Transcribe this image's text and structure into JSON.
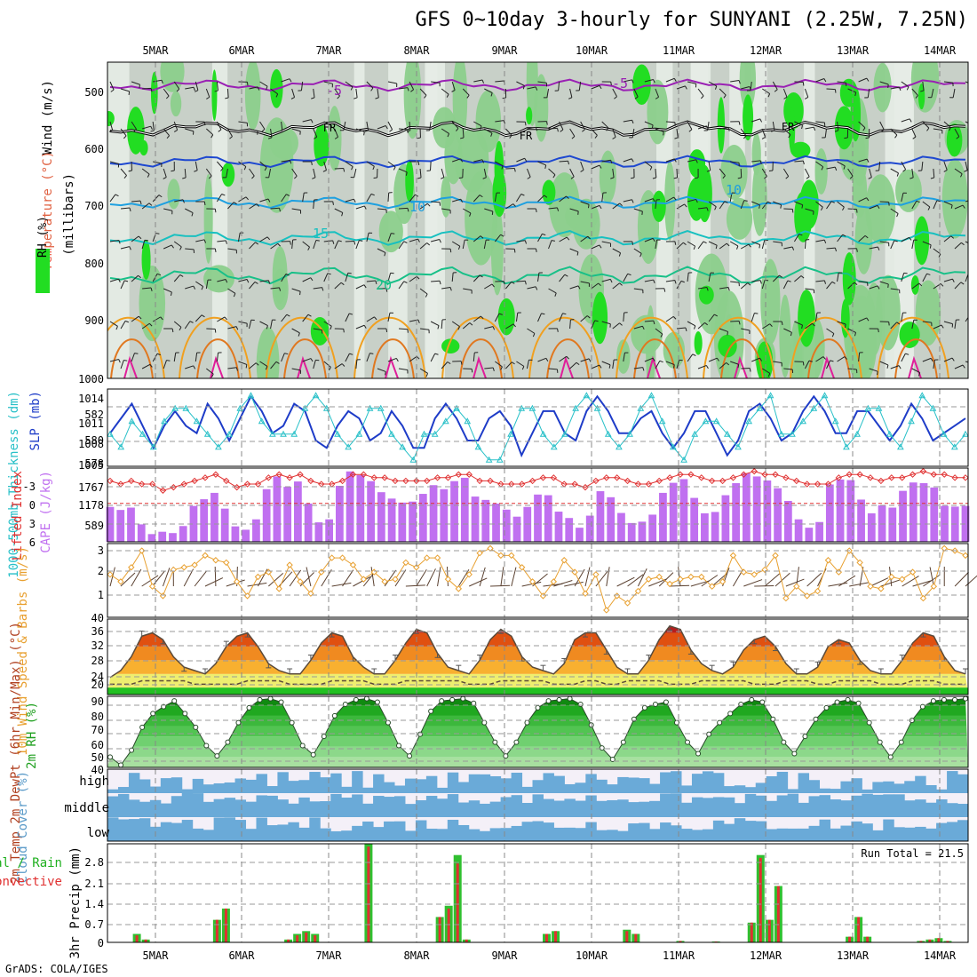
{
  "title": "GFS 0~10day 3-hourly for SUNYANI (2.25W, 7.25N)",
  "credit": "GrADS: COLA/IGES",
  "dates": [
    "5MAR",
    "6MAR",
    "7MAR",
    "8MAR",
    "9MAR",
    "10MAR",
    "11MAR",
    "12MAR",
    "13MAR",
    "14MAR"
  ],
  "colors": {
    "rh_green": "#22dd22",
    "rh_light": "#8ccf8c",
    "rh_grey": "#c8d0c8",
    "temp_purple": "#9a20b4",
    "temp_blue": "#1e48d0",
    "temp_lightblue": "#1ea0e0",
    "temp_teal": "#18c0c0",
    "temp_green": "#18c088",
    "temp_orange": "#f0a020",
    "temp_darkorange": "#e07820",
    "temp_magenta": "#e01e9a",
    "slp_line": "#1e3cc8",
    "thickness_line": "#28c0c8",
    "cape_bar": "#c070f0",
    "li_line": "#e03030",
    "wind_line": "#e8a030",
    "cloud_blue": "#6aaad8",
    "cloud_bg": "#f4f0f8",
    "precip_green": "#30c030",
    "precip_red": "#e03030"
  },
  "chart_data": [
    {
      "panel": "cross-section",
      "type": "heatmap",
      "ylabel_parts": [
        "Wind (m/s)",
        "Temperature (°C)",
        "RH (%)",
        "(millibars)"
      ],
      "yticks": [
        500,
        600,
        700,
        800,
        900,
        1000
      ],
      "contour_labels": [
        "-5",
        "-5",
        "FR",
        "FR",
        "FR",
        "10",
        "10",
        "15",
        "20"
      ]
    },
    {
      "panel": "slp-thickness",
      "type": "line",
      "ylabel_left": "1000-500mb Thickness (dm)",
      "ylabel_right": "SLP (mb)",
      "yticks_left": [
        "582",
        "580",
        "578"
      ],
      "yticks_right": [
        "1014",
        "1011",
        "1008",
        "1005"
      ],
      "series": [
        {
          "name": "SLP",
          "values": [
            1009,
            1011,
            1013,
            1010,
            1007,
            1010,
            1012,
            1010,
            1009,
            1013,
            1011,
            1008,
            1011,
            1014,
            1012,
            1009,
            1010,
            1013,
            1012,
            1008,
            1007,
            1010,
            1012,
            1011,
            1008,
            1009,
            1012,
            1010,
            1007,
            1007,
            1011,
            1013,
            1011,
            1008,
            1008,
            1011,
            1012,
            1010,
            1006,
            1009,
            1012,
            1012,
            1009,
            1008,
            1012,
            1014,
            1012,
            1009,
            1009,
            1011,
            1012,
            1009,
            1007,
            1009,
            1012,
            1012,
            1009,
            1006,
            1008,
            1012,
            1013,
            1011,
            1008,
            1009,
            1012,
            1014,
            1012,
            1009,
            1009,
            1012,
            1012,
            1010,
            1008,
            1010,
            1013,
            1011,
            1008,
            1009,
            1010,
            1011
          ]
        },
        {
          "name": "Thickness",
          "values": [
            580,
            579,
            581,
            580,
            579,
            581,
            582,
            582,
            581,
            580,
            579,
            580,
            582,
            583,
            581,
            580,
            580,
            580,
            582,
            583,
            582,
            580,
            579,
            580,
            582,
            582,
            580,
            579,
            578,
            580,
            580,
            581,
            582,
            581,
            579,
            578,
            578,
            580,
            582,
            582,
            580,
            579,
            580,
            582,
            583,
            582,
            580,
            579,
            580,
            582,
            583,
            581,
            579,
            578,
            580,
            581,
            581,
            580,
            579,
            581,
            582,
            583,
            580,
            580,
            581,
            582,
            583,
            581,
            579,
            580,
            582,
            582,
            580,
            579,
            581,
            583,
            582,
            580,
            579,
            580
          ]
        }
      ]
    },
    {
      "panel": "cape-li",
      "type": "bar",
      "ylabel_left": "Lifted Index",
      "ylabel_right": "CAPE (J/kg)",
      "yticks_left": [
        "-3",
        "0",
        "3",
        "6"
      ],
      "yticks_right": [
        "1767",
        "1178",
        "589"
      ],
      "series": [
        {
          "name": "CAPE",
          "values": [
            1040,
            950,
            1020,
            520,
            230,
            300,
            260,
            470,
            1070,
            1270,
            1460,
            990,
            460,
            360,
            670,
            1570,
            1950,
            1640,
            1800,
            1140,
            580,
            670,
            1670,
            2100,
            1990,
            1810,
            1480,
            1290,
            1170,
            1200,
            1430,
            1690,
            1570,
            1810,
            1910,
            1350,
            1250,
            1140,
            960,
            750,
            1040,
            1410,
            1390,
            900,
            710,
            420,
            780,
            1510,
            1330,
            860,
            560,
            600,
            810,
            1460,
            1760,
            1870,
            1310,
            850,
            890,
            1390,
            1750,
            2050,
            1950,
            1830,
            1600,
            1220,
            670,
            420,
            590,
            1710,
            1860,
            1840,
            1260,
            850,
            1090,
            1020,
            1520,
            1770,
            1750,
            1620,
            1070,
            1050,
            1070
          ]
        },
        {
          "name": "Lifted Index",
          "values": [
            -3.5,
            -3,
            -3.5,
            -3,
            -3,
            -2,
            -2.5,
            -3,
            -3.5,
            -4,
            -4.5,
            -3.5,
            -2.5,
            -3,
            -3,
            -4,
            -4.5,
            -4,
            -4.5,
            -3.5,
            -3,
            -3,
            -3.5,
            -4.5,
            -4.5,
            -4,
            -4,
            -3.5,
            -3.5,
            -3.5,
            -3.5,
            -4,
            -4,
            -4.5,
            -4.5,
            -3.5,
            -3.5,
            -3,
            -3,
            -3,
            -3.5,
            -4,
            -4,
            -3,
            -3,
            -2.5,
            -3.5,
            -4,
            -4,
            -3.5,
            -3,
            -3,
            -3.5,
            -4,
            -4.5,
            -4.5,
            -4,
            -3.5,
            -3.5,
            -4,
            -4.5,
            -5,
            -4.5,
            -4.5,
            -4,
            -3.5,
            -3,
            -3,
            -3,
            -4,
            -4.5,
            -4.5,
            -4,
            -3.5,
            -4,
            -4,
            -4.5,
            -5,
            -4.5,
            -4.5,
            -4,
            -4
          ]
        }
      ]
    },
    {
      "panel": "wind10m",
      "type": "line",
      "ylabel": "10m Wind Speed & Barbs (m/s)",
      "yticks": [
        "3",
        "2",
        "1"
      ],
      "ylim": [
        0,
        3
      ],
      "series": [
        {
          "name": "Speed",
          "values": [
            1.8,
            1.5,
            2.1,
            2.8,
            1.3,
            0.9,
            2.0,
            2.1,
            2.2,
            2.6,
            2.4,
            2.3,
            1.5,
            0.9,
            1.7,
            1.9,
            1.2,
            2.2,
            1.5,
            1.0,
            1.9,
            2.5,
            2.5,
            2.2,
            1.6,
            1.9,
            1.5,
            1.6,
            2.3,
            2.1,
            2.5,
            2.5,
            1.6,
            1.2,
            1.8,
            2.7,
            2.9,
            2.6,
            2.6,
            2.1,
            1.5,
            0.9,
            1.5,
            2.4,
            1.9,
            1.0,
            1.8,
            0.3,
            0.9,
            0.6,
            1.1,
            1.6,
            1.7,
            1.4,
            1.6,
            1.7,
            1.7,
            1.3,
            1.5,
            2.6,
            1.9,
            1.8,
            2.0,
            2.6,
            0.8,
            1.3,
            0.9,
            1.1,
            2.4,
            1.9,
            2.8,
            2.3,
            1.3,
            1.2,
            1.7,
            1.6,
            1.9,
            0.8,
            1.3,
            2.9,
            2.8,
            2.6
          ]
        }
      ]
    },
    {
      "panel": "temp2m",
      "type": "area",
      "ylabel": "2m Temp 2m DewPt (6hr Min/Max) (°C)",
      "yticks": [
        "40",
        "36",
        "32",
        "28",
        "24",
        "20"
      ],
      "ylim": [
        18,
        40
      ],
      "series": [
        {
          "name": "2m Temp",
          "values": [
            23,
            25,
            29,
            35,
            36,
            34,
            29,
            26,
            25,
            24,
            27,
            32,
            35,
            36,
            32,
            27,
            25,
            24,
            24,
            28,
            33,
            36,
            35,
            29,
            26,
            24,
            24,
            28,
            33,
            37,
            36,
            30,
            26,
            25,
            24,
            28,
            34,
            37,
            35,
            29,
            26,
            25,
            24,
            27,
            34,
            36,
            36,
            31,
            26,
            24,
            24,
            28,
            34,
            38,
            37,
            31,
            27,
            25,
            24,
            26,
            31,
            34,
            35,
            32,
            27,
            24,
            24,
            26,
            32,
            34,
            33,
            28,
            25,
            24,
            24,
            28,
            33,
            36,
            35,
            29,
            25,
            24
          ]
        },
        {
          "name": "2m DewPt",
          "values": [
            21,
            21,
            21,
            22,
            22,
            22,
            22,
            22,
            21,
            21,
            21,
            21,
            21,
            22,
            22,
            22,
            22,
            21,
            21,
            21,
            21,
            22,
            22,
            22,
            22,
            21,
            21,
            21,
            22,
            22,
            22,
            22,
            22,
            22,
            21,
            21,
            21,
            22,
            22,
            22,
            22,
            22,
            21,
            21,
            21,
            22,
            22,
            21,
            21,
            22,
            22,
            22,
            22,
            21,
            21,
            21,
            22,
            22,
            22,
            22,
            22,
            21,
            21,
            21,
            22,
            22,
            22,
            21,
            21,
            22,
            22,
            22,
            22,
            21,
            21,
            21,
            22,
            22,
            22,
            21,
            21,
            21
          ]
        }
      ]
    },
    {
      "panel": "rh2m",
      "type": "area",
      "ylabel": "2m RH (%)",
      "yticks": [
        "90",
        "80",
        "70",
        "60",
        "50",
        "40"
      ],
      "ylim": [
        33,
        95
      ],
      "series": [
        {
          "name": "2m RH",
          "values": [
            42,
            35,
            48,
            68,
            80,
            86,
            91,
            80,
            68,
            52,
            43,
            55,
            72,
            85,
            92,
            93,
            90,
            72,
            52,
            44,
            60,
            78,
            88,
            92,
            93,
            90,
            72,
            52,
            43,
            62,
            82,
            91,
            92,
            93,
            89,
            72,
            55,
            43,
            55,
            72,
            85,
            91,
            92,
            93,
            88,
            70,
            50,
            40,
            55,
            75,
            85,
            88,
            90,
            72,
            55,
            45,
            62,
            72,
            80,
            88,
            92,
            90,
            75,
            55,
            45,
            60,
            75,
            85,
            90,
            92,
            89,
            72,
            55,
            42,
            55,
            74,
            86,
            91,
            92,
            92,
            93
          ]
        }
      ]
    },
    {
      "panel": "cloud",
      "type": "heatmap",
      "ylabel": "Cloud Cover (%)",
      "rows": [
        "high",
        "middle",
        "low"
      ]
    },
    {
      "panel": "precip",
      "type": "bar",
      "ylabel": "3hr Precip (mm)",
      "legend": [
        "Total / Rain",
        "Convective"
      ],
      "annotation": "Run Total = 21.5",
      "yticks": [
        "2.8",
        "2.1",
        "1.4",
        "0.7",
        "0"
      ],
      "ylim": [
        0,
        3.5
      ],
      "series": [
        {
          "name": "Total",
          "values": [
            0,
            0,
            0,
            0.3,
            0.1,
            0,
            0,
            0,
            0,
            0,
            0,
            0,
            0.8,
            1.2,
            0,
            0,
            0,
            0,
            0,
            0,
            0.1,
            0.3,
            0.4,
            0.3,
            0,
            0,
            0,
            0,
            0,
            3.5,
            0,
            0,
            0,
            0,
            0,
            0,
            0,
            0.9,
            1.3,
            3.1,
            0.1,
            0,
            0,
            0,
            0,
            0,
            0,
            0,
            0,
            0.3,
            0.4,
            0,
            0,
            0,
            0,
            0,
            0,
            0,
            0.45,
            0.3,
            0,
            0,
            0,
            0,
            0.05,
            0,
            0,
            0,
            0.03,
            0,
            0,
            0,
            0.7,
            3.1,
            0.8,
            2.0,
            0,
            0,
            0,
            0,
            0,
            0,
            0,
            0.2,
            0.9,
            0.2,
            0,
            0,
            0,
            0,
            0,
            0.05,
            0.1,
            0.15,
            0.05,
            0,
            0
          ]
        },
        {
          "name": "Convective",
          "values": [
            0,
            0,
            0,
            0.25,
            0.1,
            0,
            0,
            0,
            0,
            0,
            0,
            0,
            0.8,
            1.2,
            0,
            0,
            0,
            0,
            0,
            0,
            0.1,
            0.25,
            0.35,
            0.25,
            0,
            0,
            0,
            0,
            0,
            3.4,
            0,
            0,
            0,
            0,
            0,
            0,
            0,
            0.9,
            1.2,
            2.8,
            0.1,
            0,
            0,
            0,
            0,
            0,
            0,
            0,
            0,
            0.3,
            0.4,
            0,
            0,
            0,
            0,
            0,
            0,
            0,
            0.4,
            0.3,
            0,
            0,
            0,
            0,
            0.05,
            0,
            0,
            0,
            0.03,
            0,
            0,
            0,
            0.7,
            3.0,
            0.8,
            2.0,
            0,
            0,
            0,
            0,
            0,
            0,
            0,
            0.2,
            0.9,
            0.2,
            0,
            0,
            0,
            0,
            0,
            0.05,
            0.1,
            0.15,
            0.05,
            0,
            0
          ]
        }
      ]
    }
  ]
}
